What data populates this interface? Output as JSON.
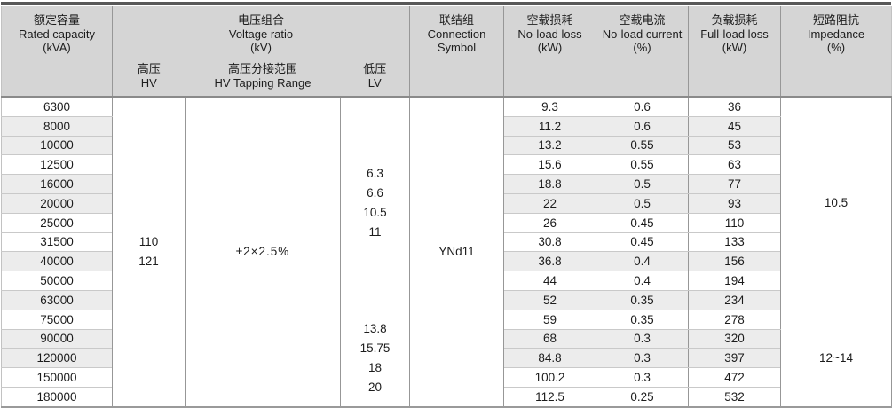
{
  "header": {
    "rated_capacity": {
      "zh": "额定容量",
      "en": "Rated capacity",
      "unit": "(kVA)"
    },
    "voltage_ratio": {
      "zh": "电压组合",
      "en": "Voltage ratio",
      "unit": "(kV)"
    },
    "hv": {
      "zh": "高压",
      "en": "HV"
    },
    "hv_tapping": {
      "zh": "高压分接范围",
      "en": "HV Tapping Range"
    },
    "lv": {
      "zh": "低压",
      "en": "LV"
    },
    "connection": {
      "zh": "联结组",
      "en": "Connection",
      "en2": "Symbol"
    },
    "no_load_loss": {
      "zh": "空载损耗",
      "en": "No-load loss",
      "unit": "(kW)"
    },
    "no_load_current": {
      "zh": "空载电流",
      "en": "No-load current",
      "unit": "(%)"
    },
    "full_load_loss": {
      "zh": "负载损耗",
      "en": "Full-load loss",
      "unit": "(kW)"
    },
    "impedance": {
      "zh": "短路阻抗",
      "en": "Impedance",
      "unit": "(%)"
    }
  },
  "merged": {
    "hv_values": [
      "110",
      "121"
    ],
    "hv_tapping_value": "±2×2.5%",
    "connection_value": "YNd11",
    "lv_groups": [
      {
        "values": [
          "6.3",
          "6.6",
          "10.5",
          "11"
        ],
        "rows": 11
      },
      {
        "values": [
          "13.8",
          "15.75",
          "18",
          "20"
        ],
        "rows": 5
      }
    ],
    "impedance_groups": [
      {
        "value": "10.5",
        "rows": 11
      },
      {
        "value": "12~14",
        "rows": 5
      }
    ]
  },
  "rows": [
    {
      "capacity": "6300",
      "no_load_loss": "9.3",
      "no_load_current": "0.6",
      "full_load_loss": "36",
      "shaded": false
    },
    {
      "capacity": "8000",
      "no_load_loss": "11.2",
      "no_load_current": "0.6",
      "full_load_loss": "45",
      "shaded": true
    },
    {
      "capacity": "10000",
      "no_load_loss": "13.2",
      "no_load_current": "0.55",
      "full_load_loss": "53",
      "shaded": true
    },
    {
      "capacity": "12500",
      "no_load_loss": "15.6",
      "no_load_current": "0.55",
      "full_load_loss": "63",
      "shaded": false
    },
    {
      "capacity": "16000",
      "no_load_loss": "18.8",
      "no_load_current": "0.5",
      "full_load_loss": "77",
      "shaded": true
    },
    {
      "capacity": "20000",
      "no_load_loss": "22",
      "no_load_current": "0.5",
      "full_load_loss": "93",
      "shaded": true
    },
    {
      "capacity": "25000",
      "no_load_loss": "26",
      "no_load_current": "0.45",
      "full_load_loss": "110",
      "shaded": false
    },
    {
      "capacity": "31500",
      "no_load_loss": "30.8",
      "no_load_current": "0.45",
      "full_load_loss": "133",
      "shaded": false
    },
    {
      "capacity": "40000",
      "no_load_loss": "36.8",
      "no_load_current": "0.4",
      "full_load_loss": "156",
      "shaded": true
    },
    {
      "capacity": "50000",
      "no_load_loss": "44",
      "no_load_current": "0.4",
      "full_load_loss": "194",
      "shaded": false
    },
    {
      "capacity": "63000",
      "no_load_loss": "52",
      "no_load_current": "0.35",
      "full_load_loss": "234",
      "shaded": true
    },
    {
      "capacity": "75000",
      "no_load_loss": "59",
      "no_load_current": "0.35",
      "full_load_loss": "278",
      "shaded": false
    },
    {
      "capacity": "90000",
      "no_load_loss": "68",
      "no_load_current": "0.3",
      "full_load_loss": "320",
      "shaded": true
    },
    {
      "capacity": "120000",
      "no_load_loss": "84.8",
      "no_load_current": "0.3",
      "full_load_loss": "397",
      "shaded": true
    },
    {
      "capacity": "150000",
      "no_load_loss": "100.2",
      "no_load_current": "0.3",
      "full_load_loss": "472",
      "shaded": false
    },
    {
      "capacity": "180000",
      "no_load_loss": "112.5",
      "no_load_current": "0.25",
      "full_load_loss": "532",
      "shaded": false
    }
  ],
  "colors": {
    "header_bg": "#d5d5d5",
    "shaded_row_bg": "#ececec",
    "grid_line": "#979797",
    "row_separator": "#c9c9c9",
    "top_bar": "#585858",
    "text": "#1c1c1c"
  }
}
